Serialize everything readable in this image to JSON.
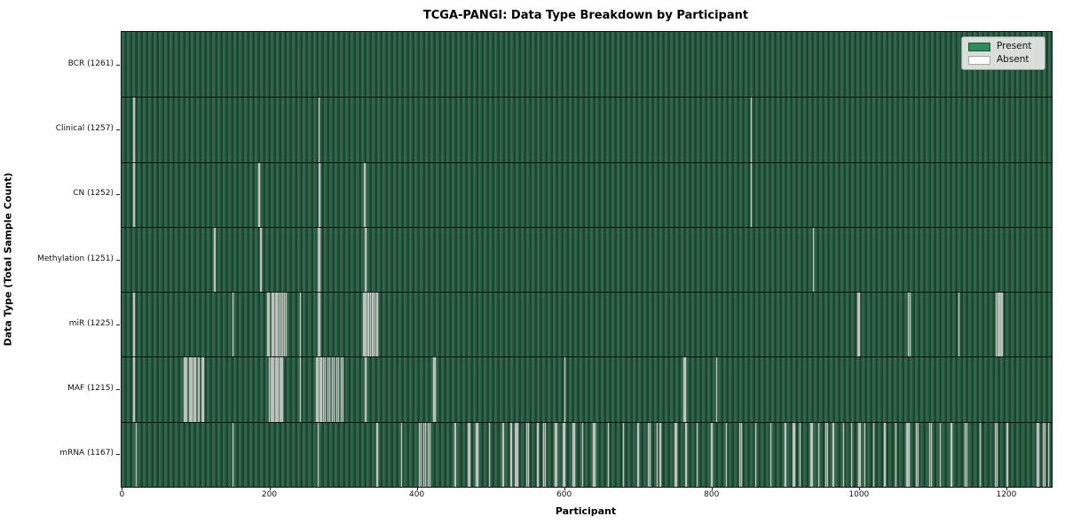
{
  "figure": {
    "title": "TCGA-PANGI: Data Type Breakdown by Participant",
    "xlabel": "Participant",
    "ylabel": "Data Type (Total Sample Count)"
  },
  "legend": {
    "items": [
      {
        "label": "Present",
        "color": "#2e8b57"
      },
      {
        "label": "Absent",
        "color": "#ffffff"
      }
    ]
  },
  "chart_data": {
    "type": "heatmap",
    "subtype": "presence-absence matrix, one thin vertical bar per participant per data-type row",
    "title": "TCGA-PANGI: Data Type Breakdown by Participant",
    "xlabel": "Participant",
    "ylabel": "Data Type (Total Sample Count)",
    "x_ticks": [
      0,
      200,
      400,
      600,
      800,
      1000,
      1200
    ],
    "xlim": [
      0,
      1261
    ],
    "total_participants": 1261,
    "legend_position": "upper right",
    "grid": false,
    "present_color": "#2e8b57",
    "absent_color": "#ffffff",
    "rows": [
      {
        "label": "BCR (1261)",
        "data_type": "BCR",
        "present_count": 1261,
        "absent_count": 0,
        "absent_participants": []
      },
      {
        "label": "Clinical (1257)",
        "data_type": "Clinical",
        "present_count": 1257,
        "absent_count": 4,
        "absent_participants": [
          16,
          17,
          267,
          854
        ]
      },
      {
        "label": "CN (1252)",
        "data_type": "CN",
        "present_count": 1252,
        "absent_count": 9,
        "absent_participants": [
          16,
          17,
          185,
          186,
          267,
          268,
          329,
          330,
          854
        ]
      },
      {
        "label": "Methylation (1251)",
        "data_type": "Methylation",
        "present_count": 1251,
        "absent_count": 10,
        "absent_participants": [
          125,
          126,
          188,
          189,
          266,
          267,
          268,
          330,
          331,
          938
        ]
      },
      {
        "label": "miR (1225)",
        "data_type": "miR",
        "present_count": 1225,
        "absent_count": 36,
        "absent_participants": [
          16,
          150,
          198,
          200,
          203,
          205,
          208,
          210,
          213,
          215,
          218,
          220,
          223,
          242,
          266,
          267,
          268,
          327,
          329,
          331,
          334,
          337,
          340,
          343,
          346,
          998,
          1000,
          1067,
          1069,
          1135,
          1186,
          1188,
          1190,
          1192,
          1193,
          1194
        ]
      },
      {
        "label": "MAF (1215)",
        "data_type": "MAF",
        "present_count": 1215,
        "absent_count": 46,
        "absent_participants": [
          16,
          84,
          86,
          88,
          91,
          93,
          95,
          98,
          100,
          103,
          105,
          108,
          110,
          200,
          202,
          204,
          206,
          208,
          210,
          212,
          214,
          216,
          218,
          242,
          264,
          266,
          268,
          270,
          273,
          276,
          279,
          282,
          285,
          288,
          291,
          294,
          297,
          300,
          330,
          331,
          423,
          425,
          601,
          762,
          764,
          807
        ]
      },
      {
        "label": "mRNA (1167)",
        "data_type": "mRNA",
        "present_count": 1167,
        "absent_count": 94,
        "absent_participants": [
          19,
          150,
          266,
          346,
          379,
          403,
          406,
          409,
          412,
          415,
          418,
          451,
          453,
          470,
          472,
          480,
          482,
          498,
          516,
          518,
          528,
          533,
          535,
          537,
          549,
          551,
          564,
          572,
          574,
          588,
          590,
          598,
          600,
          612,
          614,
          625,
          640,
          642,
          660,
          680,
          700,
          714,
          716,
          726,
          730,
          750,
          752,
          765,
          780,
          800,
          820,
          838,
          840,
          860,
          880,
          900,
          910,
          912,
          920,
          934,
          936,
          945,
          955,
          957,
          965,
          979,
          990,
          1000,
          1002,
          1008,
          1020,
          1035,
          1050,
          1064,
          1066,
          1068,
          1078,
          1080,
          1096,
          1098,
          1110,
          1125,
          1144,
          1146,
          1164,
          1185,
          1187,
          1200,
          1202,
          1242,
          1244,
          1250,
          1252,
          1257
        ]
      }
    ]
  },
  "colors": {
    "present_bar": "#2e8b57",
    "present_bar_rendered_light": "#2f684a",
    "present_bar_rendered_dark": "#1e4230",
    "absent_line": "#c0c6c0",
    "plot_border": "#111111",
    "legend_background": "#e8eae8",
    "legend_border": "#9a9a9a",
    "figure_background": "#ffffff"
  }
}
